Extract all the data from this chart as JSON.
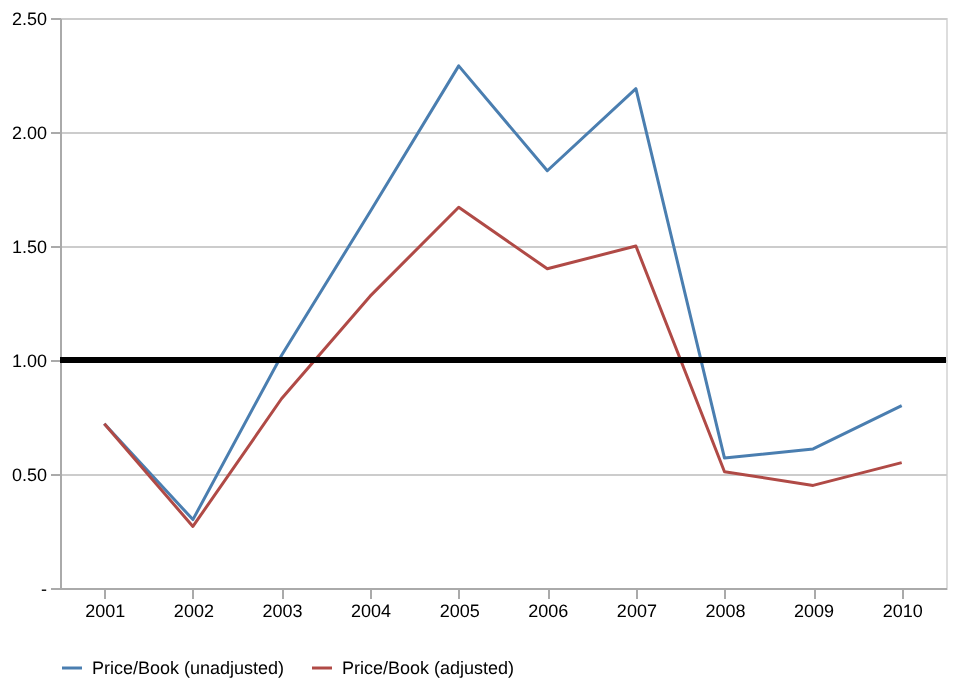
{
  "chart_data": {
    "type": "line",
    "categories": [
      "2001",
      "2002",
      "2003",
      "2004",
      "2005",
      "2006",
      "2007",
      "2008",
      "2009",
      "2010"
    ],
    "series": [
      {
        "name": "Price/Book (unadjusted)",
        "color": "#4a7eb0",
        "values": [
          0.72,
          0.3,
          1.02,
          1.65,
          2.29,
          1.83,
          2.19,
          0.57,
          0.61,
          0.8
        ]
      },
      {
        "name": "Price/Book (adjusted)",
        "color": "#b04a46",
        "values": [
          0.72,
          0.27,
          0.83,
          1.28,
          1.67,
          1.4,
          1.5,
          0.51,
          0.45,
          0.55
        ]
      }
    ],
    "ylim": [
      0,
      2.5
    ],
    "yticks": [
      {
        "value": 0,
        "label": "-"
      },
      {
        "value": 0.5,
        "label": "0.50"
      },
      {
        "value": 1,
        "label": "1.00"
      },
      {
        "value": 1.5,
        "label": "1.50"
      },
      {
        "value": 2,
        "label": "2.00"
      },
      {
        "value": 2.5,
        "label": "2.50"
      }
    ],
    "ref_lines": [
      {
        "axis": "y",
        "value": 1,
        "color": "#000000"
      }
    ],
    "grid": "y",
    "legend": "bottom",
    "marker": "none",
    "line_style": "solid"
  }
}
